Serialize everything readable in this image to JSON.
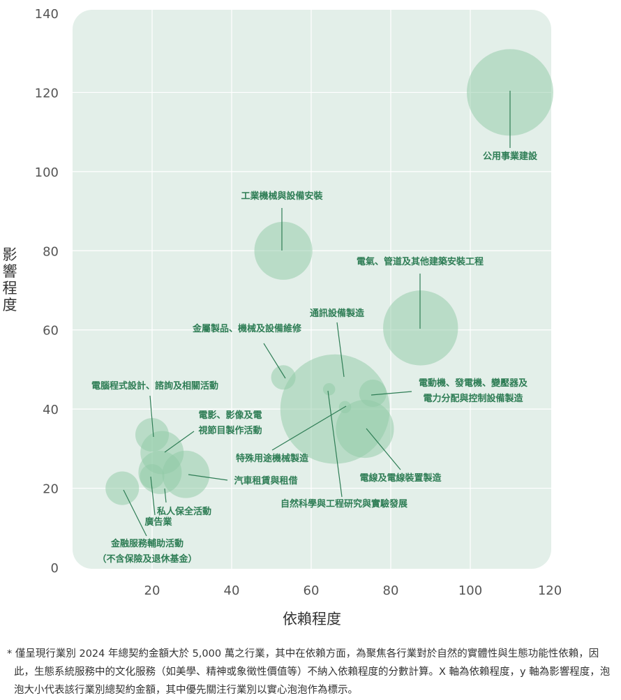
{
  "chart_data": {
    "type": "scatter",
    "xlabel": "依賴程度",
    "ylabel": "影響程度",
    "xlim": [
      0,
      120
    ],
    "ylim": [
      0,
      140
    ],
    "xticks": [
      20,
      40,
      60,
      80,
      100,
      120
    ],
    "yticks": [
      0,
      20,
      40,
      60,
      80,
      100,
      120,
      140
    ],
    "grid": true,
    "bubble_color": "#8fcaa5",
    "label_color": "#2e7d55",
    "points": [
      {
        "label": [
          "公用事業建設"
        ],
        "x": 110,
        "y": 120,
        "size": 1.0
      },
      {
        "label": [
          "工業機械與設備安裝"
        ],
        "x": 53,
        "y": 80,
        "size": 0.45
      },
      {
        "label": [
          "電氣、管道及其他建築安裝工程"
        ],
        "x": 87.5,
        "y": 60.5,
        "size": 0.75
      },
      {
        "label": [
          "通訊設備製造"
        ],
        "x": 64.5,
        "y": 45,
        "size": 0.02
      },
      {
        "label": [
          "金屬製品、機械及設備維修"
        ],
        "x": 53,
        "y": 48,
        "size": 0.08
      },
      {
        "label": [
          "電動機、發電機、變壓器及",
          "電力分配與控制設備製造"
        ],
        "x": 75.5,
        "y": 44,
        "size": 0.1
      },
      {
        "label": [
          "自然科學與工程研究與實驗發展"
        ],
        "x": 66,
        "y": 40,
        "size": 1.6
      },
      {
        "label": [
          "特殊用途機械製造"
        ],
        "x": 68.5,
        "y": 40.5,
        "size": 0.02
      },
      {
        "label": [
          "電線及電線裝置製造"
        ],
        "x": 73.5,
        "y": 35,
        "size": 0.45
      },
      {
        "label": [
          "電腦程式設計、諮詢及相關活動"
        ],
        "x": 20,
        "y": 33.5,
        "size": 0.15
      },
      {
        "label": [
          "電影、影像及電",
          "視節目製作活動"
        ],
        "x": 22.5,
        "y": 29,
        "size": 0.25
      },
      {
        "label": [
          "汽車租賃與租借"
        ],
        "x": 28.5,
        "y": 23.5,
        "size": 0.3
      },
      {
        "label": [
          "私人保全活動"
        ],
        "x": 22,
        "y": 24,
        "size": 0.25
      },
      {
        "label": [
          "廣告業"
        ],
        "x": 20,
        "y": 23,
        "size": 0.08
      },
      {
        "label": [
          "金融服務輔助活動",
          "（不含保險及退休基金）"
        ],
        "x": 12.5,
        "y": 20,
        "size": 0.15
      }
    ]
  },
  "footnote": "* 僅呈現行業別 2024 年總契約金額大於 5,000 萬之行業，其中在依賴方面，為聚焦各行業對於自然的實體性與生態功能性依賴，因此，生態系統服務中的文化服務（如美學、精神或象徵性價值等）不納入依賴程度的分數計算。X 軸為依賴程度，y 軸為影響程度，泡泡大小代表該行業別總契約金額，其中優先關注行業別以實心泡泡作為標示。"
}
